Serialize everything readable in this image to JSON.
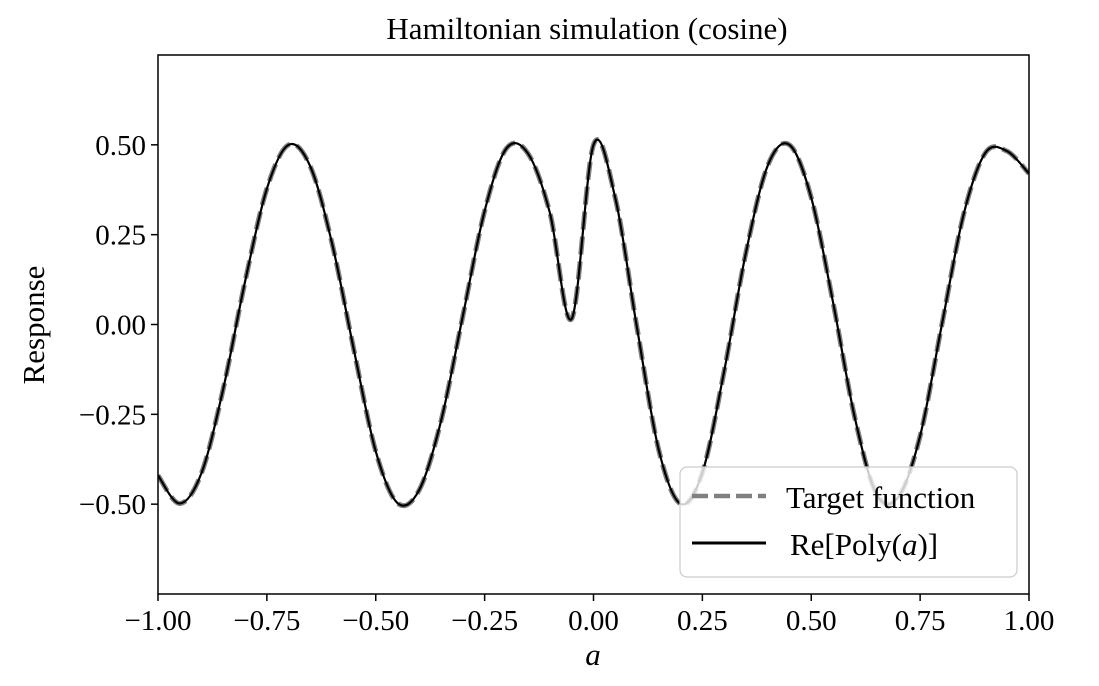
{
  "chart_data": {
    "type": "line",
    "title": "Hamiltonian simulation (cosine)",
    "xlabel": "a",
    "ylabel": "Response",
    "xlim": [
      -1.0,
      1.0
    ],
    "ylim": [
      -0.75,
      0.75
    ],
    "xticks": [
      -1.0,
      -0.75,
      -0.5,
      -0.25,
      0.0,
      0.25,
      0.5,
      0.75,
      1.0
    ],
    "xtick_labels": [
      "−1.00",
      "−0.75",
      "−0.50",
      "−0.25",
      "0.00",
      "0.25",
      "0.50",
      "0.75",
      "1.00"
    ],
    "yticks": [
      -0.5,
      -0.25,
      0.0,
      0.25,
      0.5
    ],
    "ytick_labels": [
      "−0.50",
      "−0.25",
      "0.00",
      "0.25",
      "0.50"
    ],
    "grid": false,
    "legend_position": "lower-right",
    "x": [
      -1.0,
      -0.95,
      -0.9,
      -0.85,
      -0.8,
      -0.75,
      -0.7,
      -0.65,
      -0.6,
      -0.55,
      -0.5,
      -0.45,
      -0.4,
      -0.35,
      -0.3,
      -0.25,
      -0.2,
      -0.15,
      -0.1,
      -0.05,
      0.0,
      0.05,
      0.1,
      0.15,
      0.2,
      0.25,
      0.3,
      0.35,
      0.4,
      0.45,
      0.5,
      0.55,
      0.6,
      0.65,
      0.7,
      0.75,
      0.8,
      0.85,
      0.9,
      0.95,
      1.0
    ],
    "series": [
      {
        "name": "Target function",
        "style": "dashed",
        "color": "#808080",
        "values": [
          -0.42,
          -0.498,
          -0.413,
          -0.178,
          0.12,
          0.378,
          0.5,
          0.439,
          0.224,
          -0.072,
          -0.353,
          -0.497,
          -0.46,
          -0.268,
          0.024,
          0.316,
          0.49,
          0.475,
          0.31,
          0.016,
          0.5,
          0.352,
          -0.01,
          -0.35,
          -0.499,
          -0.412,
          -0.13,
          0.2,
          0.442,
          0.5,
          0.353,
          0.062,
          -0.259,
          -0.472,
          -0.48,
          -0.31,
          0.0,
          0.307,
          0.478,
          0.482,
          0.42
        ]
      },
      {
        "name": "Re[Poly(a)]",
        "style": "solid",
        "color": "#000000",
        "values": [
          -0.42,
          -0.498,
          -0.413,
          -0.178,
          0.12,
          0.378,
          0.5,
          0.439,
          0.224,
          -0.072,
          -0.353,
          -0.497,
          -0.46,
          -0.268,
          0.024,
          0.316,
          0.49,
          0.475,
          0.31,
          0.016,
          0.5,
          0.352,
          -0.01,
          -0.35,
          -0.499,
          -0.412,
          -0.13,
          0.2,
          0.442,
          0.5,
          0.353,
          0.062,
          -0.259,
          -0.472,
          -0.48,
          -0.31,
          0.0,
          0.307,
          0.478,
          0.482,
          0.42
        ]
      }
    ]
  },
  "legend": {
    "target_label": "Target function",
    "poly_label_prefix": "Re[Poly(",
    "poly_label_var": "a",
    "poly_label_suffix": ")]"
  }
}
